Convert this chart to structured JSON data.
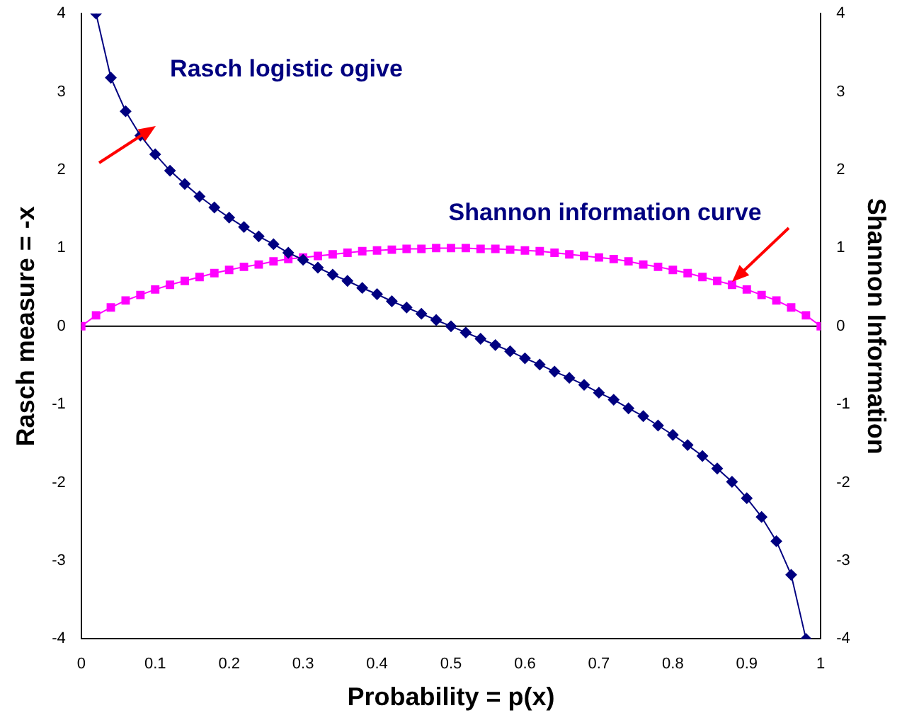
{
  "chart_data": {
    "type": "line",
    "xlabel": "Probability = p(x)",
    "ylabel": "Rasch measure = -x",
    "y2label": "Shannon Information",
    "xlim": [
      0,
      1
    ],
    "xticks": [
      0,
      0.1,
      0.2,
      0.3,
      0.4,
      0.5,
      0.6,
      0.7,
      0.8,
      0.9,
      1
    ],
    "ylim": [
      -4,
      4
    ],
    "yticks": [
      -4,
      -3,
      -2,
      -1,
      0,
      1,
      2,
      3,
      4
    ],
    "y2lim": [
      -4,
      4
    ],
    "y2ticks": [
      -4,
      -3,
      -2,
      -1,
      0,
      1,
      2,
      3,
      4
    ],
    "grid": false,
    "legend": false,
    "series": [
      {
        "color": "#000080",
        "marker": "diamond",
        "x": [
          0.02,
          0.04,
          0.06,
          0.08,
          0.1,
          0.12,
          0.14,
          0.16,
          0.18,
          0.2,
          0.22,
          0.24,
          0.26,
          0.28,
          0.3,
          0.32,
          0.34,
          0.36,
          0.38,
          0.4,
          0.42,
          0.44,
          0.46,
          0.48,
          0.5,
          0.52,
          0.54,
          0.56,
          0.58,
          0.6,
          0.62,
          0.64,
          0.66,
          0.68,
          0.7,
          0.72,
          0.74,
          0.76,
          0.78,
          0.8,
          0.82,
          0.84,
          0.86,
          0.88,
          0.9,
          0.92,
          0.94,
          0.96,
          0.98
        ],
        "values": [
          4,
          3.18,
          2.75,
          2.44,
          2.2,
          1.99,
          1.82,
          1.66,
          1.52,
          1.39,
          1.27,
          1.15,
          1.05,
          0.94,
          0.85,
          0.75,
          0.66,
          0.58,
          0.49,
          0.41,
          0.32,
          0.24,
          0.16,
          0.08,
          0,
          -0.08,
          -0.16,
          -0.24,
          -0.32,
          -0.41,
          -0.49,
          -0.58,
          -0.66,
          -0.75,
          -0.85,
          -0.94,
          -1.05,
          -1.15,
          -1.27,
          -1.39,
          -1.52,
          -1.66,
          -1.82,
          -1.99,
          -2.2,
          -2.44,
          -2.75,
          -3.18,
          -4
        ]
      },
      {
        "color": "#ff00ff",
        "marker": "square",
        "x": [
          0,
          0.02,
          0.04,
          0.06,
          0.08,
          0.1,
          0.12,
          0.14,
          0.16,
          0.18,
          0.2,
          0.22,
          0.24,
          0.26,
          0.28,
          0.3,
          0.32,
          0.34,
          0.36,
          0.38,
          0.4,
          0.42,
          0.44,
          0.46,
          0.48,
          0.5,
          0.52,
          0.54,
          0.56,
          0.58,
          0.6,
          0.62,
          0.64,
          0.66,
          0.68,
          0.7,
          0.72,
          0.74,
          0.76,
          0.78,
          0.8,
          0.82,
          0.84,
          0.86,
          0.88,
          0.9,
          0.92,
          0.94,
          0.96,
          0.98,
          1
        ],
        "values": [
          0,
          0.14,
          0.24,
          0.33,
          0.4,
          0.47,
          0.53,
          0.58,
          0.63,
          0.68,
          0.72,
          0.76,
          0.79,
          0.83,
          0.86,
          0.88,
          0.9,
          0.92,
          0.94,
          0.96,
          0.97,
          0.98,
          0.99,
          0.99,
          1,
          1,
          1,
          0.99,
          0.99,
          0.98,
          0.97,
          0.96,
          0.94,
          0.92,
          0.9,
          0.88,
          0.86,
          0.83,
          0.79,
          0.76,
          0.72,
          0.68,
          0.63,
          0.58,
          0.53,
          0.47,
          0.4,
          0.33,
          0.24,
          0.14,
          0
        ]
      }
    ],
    "ref_lines": [
      {
        "axis": "y",
        "value": 0,
        "color": "#000000"
      }
    ],
    "annotations": [
      "Rasch logistic ogive",
      "Shannon information curve"
    ]
  }
}
